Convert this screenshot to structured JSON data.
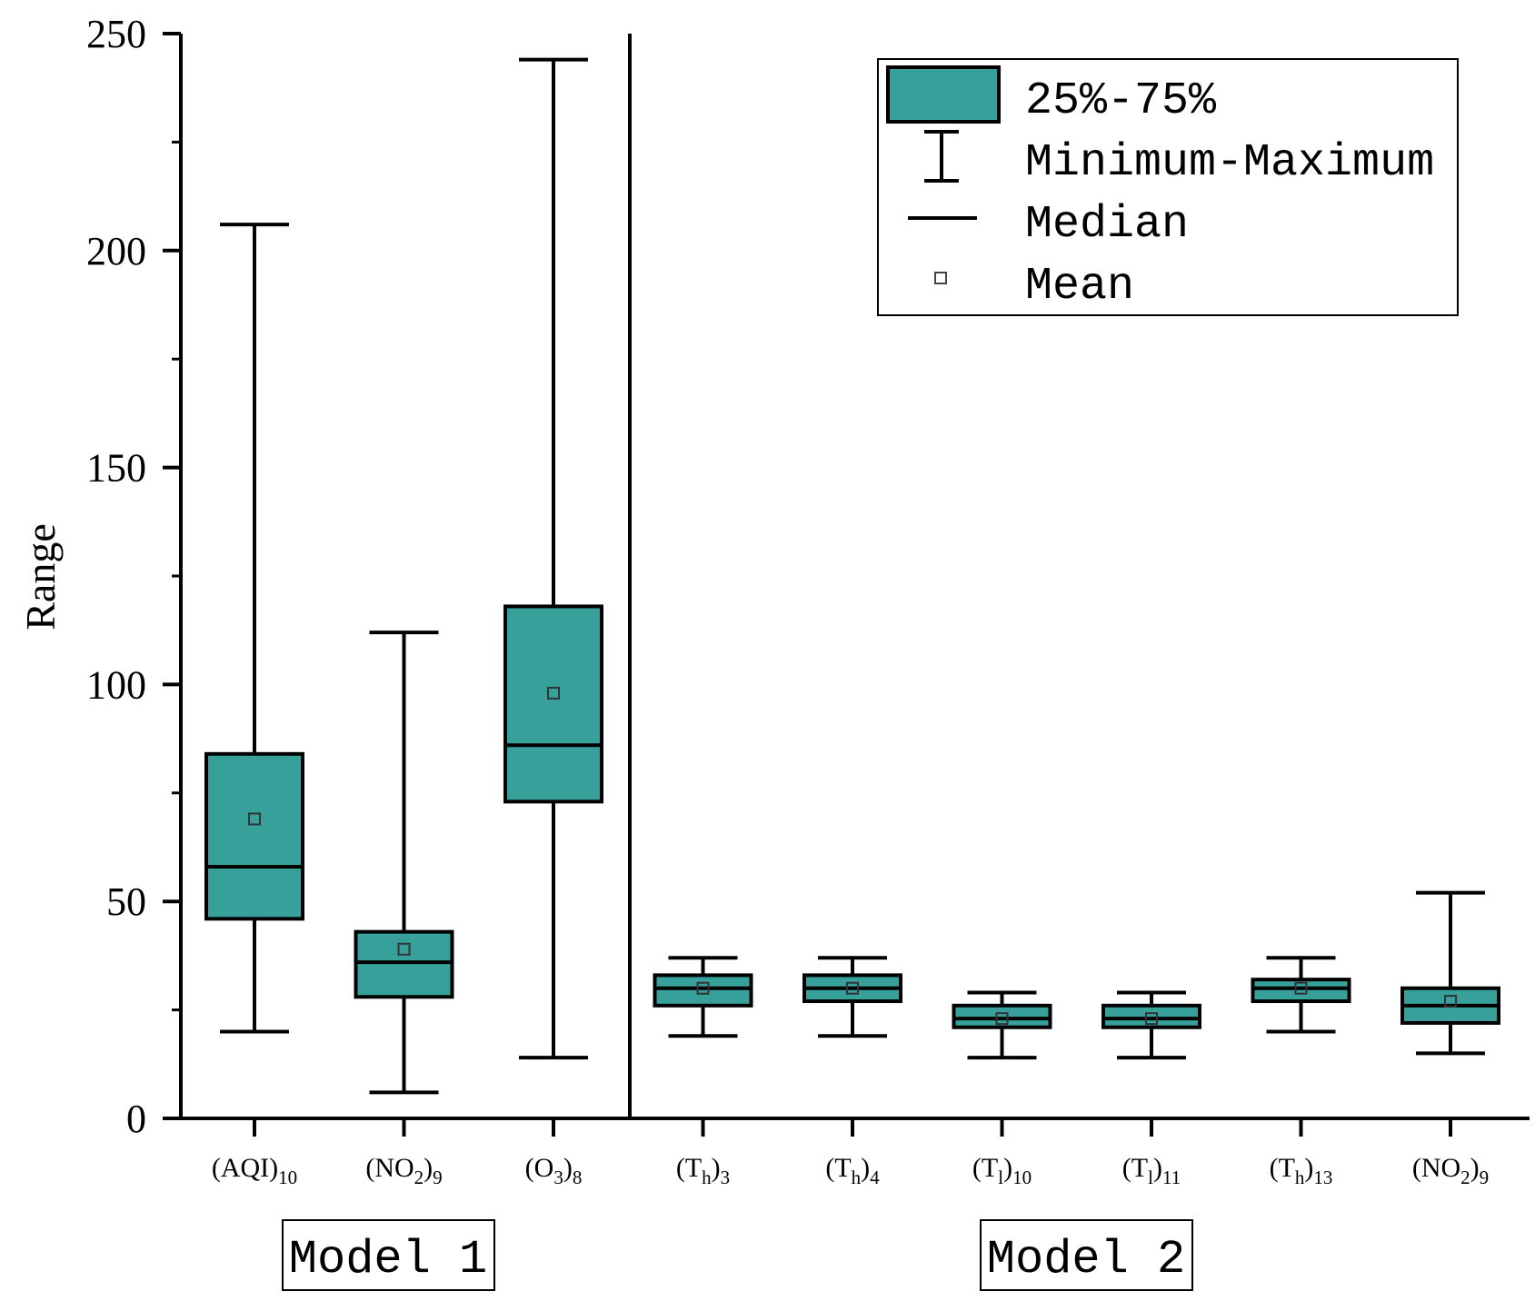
{
  "chart_data": {
    "type": "boxplot",
    "ylabel": "Range",
    "ylim": [
      0,
      250
    ],
    "yticks": [
      "0",
      "50",
      "100",
      "150",
      "200",
      "250"
    ],
    "colors": {
      "box": "#38a09b",
      "stroke": "#000000"
    },
    "legend": {
      "position": "top-right",
      "items": [
        {
          "label": "25%-75%",
          "symbol": "box"
        },
        {
          "label": "Minimum-Maximum",
          "symbol": "whisker"
        },
        {
          "label": "Median",
          "symbol": "line"
        },
        {
          "label": "Mean",
          "symbol": "square"
        }
      ]
    },
    "groups": [
      {
        "label": "Model 1",
        "start": 0,
        "end": 2
      },
      {
        "label": "Model 2",
        "start": 3,
        "end": 8
      }
    ],
    "series": [
      {
        "base": "(AQI)",
        "sub": "10",
        "post": "",
        "min": 20,
        "q1": 46,
        "median": 58,
        "q3": 84,
        "max": 206,
        "mean": 69
      },
      {
        "base": "(NO",
        "sub": "2",
        "post": ")9",
        "min": 6,
        "q1": 28,
        "median": 36,
        "q3": 43,
        "max": 112,
        "mean": 39
      },
      {
        "base": "(O",
        "sub": "3",
        "post": ")8",
        "min": 14,
        "q1": 73,
        "median": 86,
        "q3": 118,
        "max": 244,
        "mean": 98
      },
      {
        "base": "(T",
        "sub": "h",
        "post": ")3",
        "min": 19,
        "q1": 26,
        "median": 30,
        "q3": 33,
        "max": 37,
        "mean": 30
      },
      {
        "base": "(T",
        "sub": "h",
        "post": ")4",
        "min": 19,
        "q1": 27,
        "median": 30,
        "q3": 33,
        "max": 37,
        "mean": 30
      },
      {
        "base": "(T",
        "sub": "l",
        "post": ")10",
        "min": 14,
        "q1": 21,
        "median": 23,
        "q3": 26,
        "max": 29,
        "mean": 23
      },
      {
        "base": "(T",
        "sub": "l",
        "post": ")11",
        "min": 14,
        "q1": 21,
        "median": 23,
        "q3": 26,
        "max": 29,
        "mean": 23
      },
      {
        "base": "(T",
        "sub": "h",
        "post": ")13",
        "min": 20,
        "q1": 27,
        "median": 30,
        "q3": 32,
        "max": 37,
        "mean": 30
      },
      {
        "base": "(NO",
        "sub": "2",
        "post": ")9",
        "min": 15,
        "q1": 22,
        "median": 26,
        "q3": 30,
        "max": 52,
        "mean": 27
      }
    ]
  }
}
